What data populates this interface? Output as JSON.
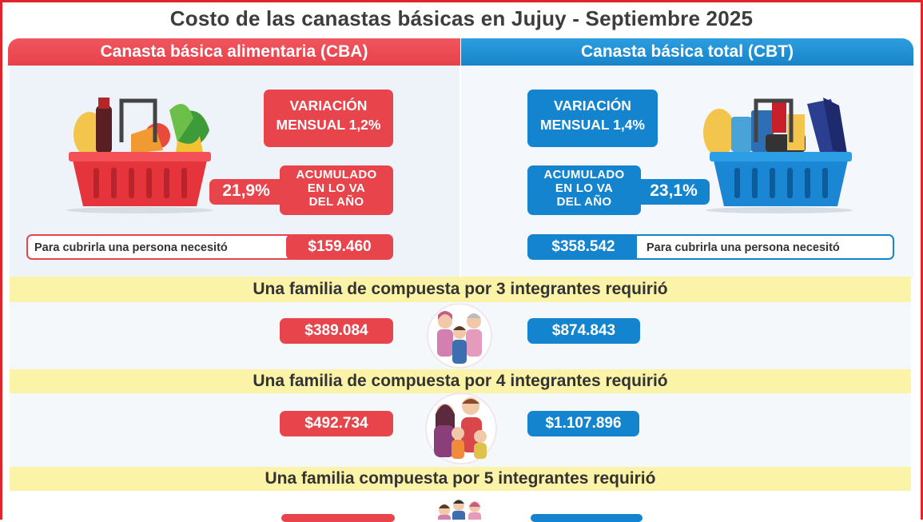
{
  "title": "Costo de las canastas básicas en Jujuy - Septiembre 2025",
  "cba": {
    "header": "Canasta básica alimentaria (CBA)",
    "variacion": [
      "VARIACIÓN",
      "MENSUAL 1,2%"
    ],
    "acumulado_pct": "21,9%",
    "acumulado": [
      "ACUMULADO",
      "EN LO VA",
      "DEL AÑO"
    ],
    "persona_label": "Para cubrirla una persona necesitó",
    "persona_valor": "$159.460",
    "familia3": "$389.084",
    "familia4": "$492.734"
  },
  "cbt": {
    "header": "Canasta básica total  (CBT)",
    "variacion": [
      "VARIACIÓN",
      "MENSUAL 1,4%"
    ],
    "acumulado_pct": "23,1%",
    "acumulado": [
      "ACUMULADO",
      "EN LO VA",
      "DEL AÑO"
    ],
    "persona_label": "Para cubrirla una persona necesitó",
    "persona_valor": "$358.542",
    "familia3": "$874.843",
    "familia4": "$1.107.896"
  },
  "bands": {
    "familia3": "Una familia de compuesta por 3 integrantes requirió",
    "familia4": "Una familia de compuesta por 4 integrantes requirió",
    "familia5": "Una familia compuesta por 5 integrantes requirió"
  },
  "icons": {
    "cba_basket": "food-basket-icon",
    "cbt_basket": "goods-basket-icon",
    "family3": "family-3-icon",
    "family4": "family-4-icon",
    "family5": "family-5-icon"
  },
  "colors": {
    "red": "#e7444c",
    "blue": "#1584cf",
    "yellow": "#fbf3a8",
    "frame": "#e0262b"
  }
}
